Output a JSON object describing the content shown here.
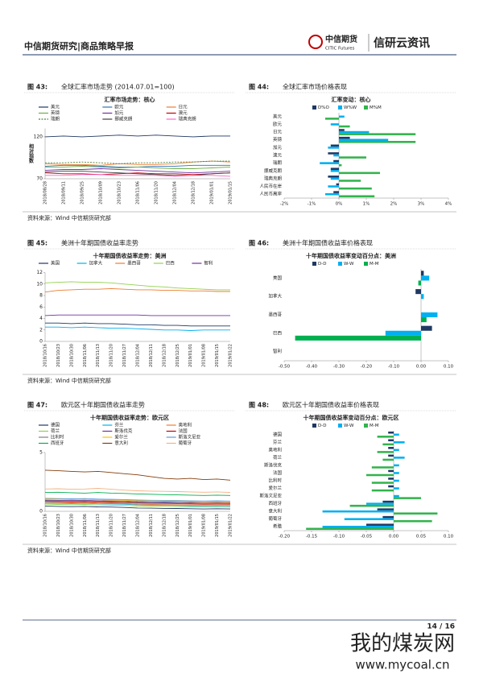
{
  "header": {
    "title": "中信期货研究|商品策略早报",
    "logo_cn": "中信期货",
    "logo_en": "CITIC Futures",
    "brand": "信研云资讯"
  },
  "footer": {
    "page": "14 / 16",
    "watermark": "我的煤炭网",
    "watermark_url": "www.mycoal.cn"
  },
  "chart_data": [
    {
      "type": "line",
      "figure_label": "图 43:",
      "caption": "全球汇率市场走势 (2014.07.01=100)",
      "title": "汇率市场走势：核心",
      "ylabel": "相对指数",
      "source": "资料来源：Wind  中信期货研究部",
      "categories": [
        "2018/08/28",
        "2018/09/11",
        "2018/09/25",
        "2018/10/09",
        "2018/10/23",
        "2018/11/06",
        "2018/11/20",
        "2018/12/04",
        "2018/12/18",
        "2019/01/01",
        "2019/01/15"
      ],
      "ylim": [
        70,
        130
      ],
      "yticks": [
        70,
        120
      ],
      "series": [
        {
          "name": "美元",
          "color": "#1f3864",
          "values": [
            120,
            121,
            120,
            121,
            122,
            121,
            122,
            121,
            120,
            121,
            121
          ]
        },
        {
          "name": "欧元",
          "color": "#2e75b6",
          "values": [
            85,
            86,
            86,
            85,
            84,
            84,
            85,
            85,
            86,
            86,
            86
          ]
        },
        {
          "name": "日元",
          "color": "#ed7d31",
          "values": [
            88,
            87,
            87,
            86,
            88,
            87,
            87,
            88,
            90,
            91,
            90
          ]
        },
        {
          "name": "英镑",
          "color": "#70ad47",
          "values": [
            84,
            84,
            85,
            84,
            83,
            84,
            83,
            82,
            82,
            83,
            84
          ]
        },
        {
          "name": "加元",
          "color": "#7030a0",
          "values": [
            80,
            81,
            81,
            82,
            81,
            80,
            79,
            78,
            77,
            78,
            79
          ]
        },
        {
          "name": "澳元",
          "color": "#c00000",
          "values": [
            77,
            76,
            76,
            75,
            76,
            77,
            76,
            76,
            75,
            76,
            77
          ]
        },
        {
          "name": "瑞朗",
          "color": "#548235",
          "dash": true,
          "values": [
            89,
            89,
            90,
            89,
            88,
            89,
            89,
            90,
            90,
            91,
            91
          ]
        },
        {
          "name": "挪威克朗",
          "color": "#404040",
          "values": [
            78,
            79,
            79,
            78,
            77,
            76,
            75,
            74,
            74,
            76,
            77
          ]
        },
        {
          "name": "瑞典克朗",
          "color": "#ff66cc",
          "values": [
            74,
            74,
            75,
            75,
            74,
            74,
            74,
            73,
            74,
            74,
            73
          ]
        }
      ]
    },
    {
      "type": "hbar",
      "figure_label": "图 44:",
      "caption": "全球汇率市场价格表现",
      "title": "汇率变动：核心",
      "categories": [
        "美元",
        "欧元",
        "日元",
        "英镑",
        "加元",
        "澳元",
        "瑞朗",
        "挪威克朗",
        "瑞典克朗",
        "人民币在岸",
        "人民币离岸"
      ],
      "xlim": [
        -2,
        4
      ],
      "xticks": [
        {
          "value": -2,
          "label": "-2%"
        },
        {
          "value": -1,
          "label": "-1%"
        },
        {
          "value": 0,
          "label": "0%"
        },
        {
          "value": 1,
          "label": "1%"
        },
        {
          "value": 2,
          "label": "2%"
        },
        {
          "value": 3,
          "label": "3%"
        },
        {
          "value": 4,
          "label": "4%"
        }
      ],
      "series": [
        {
          "name": "D%O",
          "color": "#1f3864",
          "values": [
            0.0,
            0.0,
            0.2,
            0.4,
            -0.3,
            -0.4,
            -0.2,
            -0.3,
            -0.4,
            -0.1,
            -0.2
          ]
        },
        {
          "name": "W%W",
          "color": "#00b0f0",
          "values": [
            0.2,
            -0.3,
            1.1,
            1.8,
            -0.4,
            -0.2,
            -0.7,
            -0.3,
            -0.3,
            -0.4,
            -0.5
          ]
        },
        {
          "name": "M%M",
          "color": "#33b34d",
          "values": [
            -0.5,
            0.4,
            2.8,
            2.8,
            0.0,
            1.0,
            0.1,
            1.5,
            0.8,
            1.2,
            1.3
          ]
        }
      ]
    },
    {
      "type": "line",
      "figure_label": "图 45:",
      "caption": "美洲十年期国债收益率走势",
      "title": "十年期国债收益率走势：美洲",
      "source": "资料来源：Wind  中信期货研究部",
      "categories": [
        "2018/10/16",
        "2018/10/23",
        "2018/10/30",
        "2018/11/06",
        "2018/11/13",
        "2018/11/20",
        "2018/11/27",
        "2018/12/04",
        "2018/12/11",
        "2018/12/18",
        "2018/12/25",
        "2019/01/01",
        "2019/01/08",
        "2019/01/15",
        "2019/01/22"
      ],
      "ylim": [
        0,
        12
      ],
      "yticks": [
        0,
        2,
        4,
        6,
        8,
        10,
        12
      ],
      "series": [
        {
          "name": "美国",
          "color": "#1f3864",
          "values": [
            3.2,
            3.2,
            3.1,
            3.2,
            3.1,
            3.1,
            3.0,
            2.9,
            2.9,
            2.8,
            2.8,
            2.7,
            2.7,
            2.7,
            2.7
          ]
        },
        {
          "name": "加拿大",
          "color": "#00b0f0",
          "values": [
            2.5,
            2.5,
            2.4,
            2.5,
            2.4,
            2.3,
            2.3,
            2.2,
            2.1,
            2.0,
            2.0,
            1.9,
            2.0,
            2.0,
            2.0
          ]
        },
        {
          "name": "墨西哥",
          "color": "#ed7d31",
          "values": [
            8.6,
            8.9,
            9.0,
            9.1,
            9.1,
            9.2,
            9.1,
            9.0,
            9.0,
            8.9,
            8.9,
            8.8,
            8.8,
            8.7,
            8.7
          ]
        },
        {
          "name": "巴西",
          "color": "#92d050",
          "values": [
            10.2,
            10.3,
            10.4,
            10.3,
            10.3,
            10.2,
            10.0,
            9.8,
            9.6,
            9.5,
            9.3,
            9.2,
            9.1,
            9.0,
            9.0
          ]
        },
        {
          "name": "智利",
          "color": "#7030a0",
          "values": [
            4.5,
            4.6,
            4.6,
            4.6,
            4.6,
            4.6,
            4.6,
            4.6,
            4.5,
            4.5,
            4.5,
            4.5,
            4.5,
            4.5,
            4.5
          ]
        }
      ]
    },
    {
      "type": "hbar",
      "figure_label": "图 46:",
      "caption": "美洲十年期国债收益率价格表现",
      "title": "十年期国债收益率变动百分点：美洲",
      "categories": [
        "美国",
        "加拿大",
        "墨西哥",
        "巴西",
        "智利"
      ],
      "xlim": [
        -0.5,
        0.1
      ],
      "xticks": [
        {
          "value": -0.5,
          "label": "-0.50"
        },
        {
          "value": -0.4,
          "label": "-0.40"
        },
        {
          "value": -0.3,
          "label": "-0.30"
        },
        {
          "value": -0.2,
          "label": "-0.20"
        },
        {
          "value": -0.1,
          "label": "-0.10"
        },
        {
          "value": 0,
          "label": "0.00"
        },
        {
          "value": 0.1,
          "label": "0.10"
        }
      ],
      "series": [
        {
          "name": "D-D",
          "color": "#1f3864",
          "values": [
            0.01,
            -0.02,
            0.0,
            0.04,
            0.0
          ]
        },
        {
          "name": "W-W",
          "color": "#00b0f0",
          "values": [
            0.03,
            0.01,
            0.06,
            -0.13,
            0.0
          ]
        },
        {
          "name": "M-M",
          "color": "#00b050",
          "values": [
            -0.01,
            0.0,
            0.02,
            -0.46,
            0.0
          ]
        }
      ]
    },
    {
      "type": "line",
      "figure_label": "图 47:",
      "caption": "欧元区十年期国债收益率走势",
      "title": "十年期国债收益率走势：欧元区",
      "source": "资料来源：Wind  中信期货研究部",
      "categories": [
        "2018/10/16",
        "2018/10/23",
        "2018/10/30",
        "2018/11/06",
        "2018/11/13",
        "2018/11/20",
        "2018/11/27",
        "2018/12/04",
        "2018/12/11",
        "2018/12/18",
        "2018/12/25",
        "2019/01/01",
        "2019/01/08",
        "2019/01/15",
        "2019/01/22"
      ],
      "ylim": [
        0,
        5
      ],
      "yticks": [
        0,
        5
      ],
      "series": [
        {
          "name": "德国",
          "color": "#1f3864",
          "values": [
            0.45,
            0.42,
            0.4,
            0.42,
            0.38,
            0.36,
            0.33,
            0.28,
            0.27,
            0.25,
            0.24,
            0.22,
            0.2,
            0.22,
            0.2
          ]
        },
        {
          "name": "芬兰",
          "color": "#00b0f0",
          "values": [
            0.7,
            0.68,
            0.66,
            0.68,
            0.64,
            0.62,
            0.6,
            0.55,
            0.53,
            0.52,
            0.5,
            0.48,
            0.46,
            0.47,
            0.45
          ]
        },
        {
          "name": "奥地利",
          "color": "#ed7d31",
          "values": [
            0.75,
            0.74,
            0.72,
            0.74,
            0.7,
            0.68,
            0.66,
            0.6,
            0.58,
            0.57,
            0.55,
            0.52,
            0.5,
            0.51,
            0.49
          ]
        },
        {
          "name": "荷兰",
          "color": "#92d050",
          "values": [
            0.6,
            0.58,
            0.56,
            0.58,
            0.54,
            0.52,
            0.5,
            0.45,
            0.43,
            0.42,
            0.4,
            0.38,
            0.36,
            0.37,
            0.35
          ]
        },
        {
          "name": "斯洛伐克",
          "color": "#7030a0",
          "values": [
            0.95,
            0.93,
            0.92,
            0.94,
            0.9,
            0.88,
            0.87,
            0.82,
            0.8,
            0.79,
            0.78,
            0.75,
            0.74,
            0.75,
            0.73
          ]
        },
        {
          "name": "法国",
          "color": "#c00000",
          "values": [
            0.85,
            0.83,
            0.8,
            0.82,
            0.78,
            0.76,
            0.74,
            0.7,
            0.68,
            0.67,
            0.65,
            0.62,
            0.6,
            0.61,
            0.6
          ]
        },
        {
          "name": "比利时",
          "color": "#808080",
          "values": [
            0.9,
            0.88,
            0.86,
            0.88,
            0.84,
            0.82,
            0.8,
            0.75,
            0.73,
            0.72,
            0.7,
            0.68,
            0.66,
            0.67,
            0.65
          ]
        },
        {
          "name": "爱尔兰",
          "color": "#ffc000",
          "values": [
            1.05,
            1.03,
            1.0,
            1.02,
            0.98,
            0.96,
            0.94,
            0.9,
            0.88,
            0.86,
            0.84,
            0.82,
            0.8,
            0.81,
            0.79
          ]
        },
        {
          "name": "斯洛文尼亚",
          "color": "#5b9bd5",
          "values": [
            1.1,
            1.08,
            1.06,
            1.08,
            1.04,
            1.02,
            1.0,
            0.96,
            0.94,
            0.93,
            0.92,
            0.9,
            0.88,
            0.89,
            0.87
          ]
        },
        {
          "name": "西班牙",
          "color": "#00b050",
          "values": [
            1.6,
            1.62,
            1.58,
            1.55,
            1.6,
            1.55,
            1.52,
            1.48,
            1.45,
            1.42,
            1.4,
            1.38,
            1.35,
            1.38,
            1.35
          ]
        },
        {
          "name": "意大利",
          "color": "#833c0b",
          "values": [
            3.5,
            3.45,
            3.4,
            3.35,
            3.4,
            3.3,
            3.2,
            3.1,
            2.95,
            2.8,
            2.75,
            2.8,
            2.7,
            2.75,
            2.65
          ]
        },
        {
          "name": "葡萄牙",
          "color": "#f4b183",
          "values": [
            1.9,
            1.92,
            1.88,
            1.9,
            1.95,
            1.88,
            1.8,
            1.75,
            1.72,
            1.7,
            1.68,
            1.65,
            1.62,
            1.65,
            1.6
          ]
        }
      ]
    },
    {
      "type": "hbar",
      "figure_label": "图 48:",
      "caption": "欧元区十年期国债收益率价格表现",
      "title": "十年期国债收益率变动百分点：欧元区",
      "categories": [
        "德国",
        "芬兰",
        "奥地利",
        "荷兰",
        "斯洛伐克",
        "法国",
        "比利时",
        "爱尔兰",
        "斯洛文尼亚",
        "西班牙",
        "意大利",
        "葡萄牙",
        "希腊"
      ],
      "xlim": [
        -0.2,
        0.1
      ],
      "xticks": [
        {
          "value": -0.2,
          "label": "-0.20"
        },
        {
          "value": -0.15,
          "label": "-0.15"
        },
        {
          "value": -0.1,
          "label": "-0.10"
        },
        {
          "value": -0.05,
          "label": "-0.05"
        },
        {
          "value": 0,
          "label": "0.00"
        },
        {
          "value": 0.05,
          "label": "0.05"
        },
        {
          "value": 0.1,
          "label": "0.10"
        }
      ],
      "series": [
        {
          "name": "D-D",
          "color": "#1f3864",
          "values": [
            -0.01,
            -0.01,
            -0.01,
            -0.01,
            0.0,
            -0.01,
            -0.01,
            -0.01,
            0.0,
            -0.02,
            -0.03,
            -0.02,
            -0.05
          ]
        },
        {
          "name": "W-W",
          "color": "#00b0f0",
          "values": [
            0.01,
            0.02,
            0.01,
            0.02,
            0.01,
            0.01,
            0.01,
            0.01,
            0.01,
            -0.05,
            -0.13,
            -0.09,
            -0.13
          ]
        },
        {
          "name": "M-M",
          "color": "#33b34d",
          "values": [
            -0.03,
            -0.02,
            -0.03,
            -0.02,
            -0.04,
            -0.05,
            -0.04,
            -0.04,
            0.05,
            -0.08,
            0.08,
            0.07,
            -0.16
          ]
        }
      ]
    }
  ]
}
